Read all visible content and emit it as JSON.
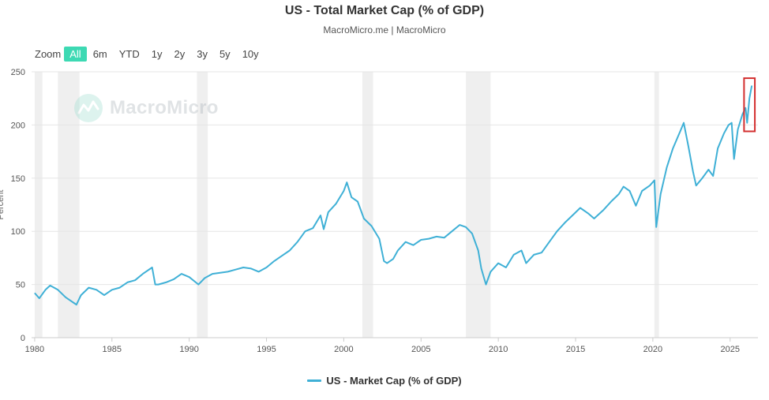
{
  "header": {
    "title": "US - Total Market Cap (% of GDP)",
    "subtitle": "MacroMicro.me | MacroMicro"
  },
  "zoom": {
    "label": "Zoom",
    "buttons": [
      "All",
      "6m",
      "YTD",
      "1y",
      "2y",
      "3y",
      "5y",
      "10y"
    ],
    "active": "All"
  },
  "watermark": {
    "text": "MacroMicro",
    "icon": "macromicro-logo-icon"
  },
  "colors": {
    "line": "#3fb0d6",
    "recession": "#efefef",
    "grid": "#e6e6e6",
    "highlight": "#d32f2f",
    "active_zoom": "#3dd9b3"
  },
  "chart_data": {
    "type": "line",
    "title": "US - Total Market Cap (% of GDP)",
    "subtitle": "MacroMicro.me | MacroMicro",
    "xlabel": "",
    "ylabel": "Percent",
    "xlim": [
      1979.8,
      2026.8
    ],
    "ylim": [
      0,
      250
    ],
    "x_ticks": [
      1980,
      1985,
      1990,
      1995,
      2000,
      2005,
      2010,
      2015,
      2020,
      2025
    ],
    "y_ticks": [
      0,
      50,
      100,
      150,
      200,
      250
    ],
    "grid": true,
    "legend_position": "bottom-center",
    "recession_bands": [
      [
        1980.0,
        1980.5
      ],
      [
        1981.5,
        1982.9
      ],
      [
        1990.5,
        1991.2
      ],
      [
        2001.2,
        2001.9
      ],
      [
        2007.9,
        2009.5
      ],
      [
        2020.1,
        2020.4
      ]
    ],
    "highlight_box": {
      "x": [
        2025.9,
        2026.6
      ],
      "y": [
        194,
        244
      ]
    },
    "series": [
      {
        "name": "US - Market Cap (% of GDP)",
        "points": [
          [
            1980.0,
            42
          ],
          [
            1980.3,
            37
          ],
          [
            1980.7,
            45
          ],
          [
            1981.0,
            49
          ],
          [
            1981.5,
            45
          ],
          [
            1982.0,
            38
          ],
          [
            1982.5,
            33
          ],
          [
            1982.7,
            31
          ],
          [
            1983.0,
            40
          ],
          [
            1983.5,
            47
          ],
          [
            1984.0,
            45
          ],
          [
            1984.5,
            40
          ],
          [
            1985.0,
            45
          ],
          [
            1985.5,
            47
          ],
          [
            1986.0,
            52
          ],
          [
            1986.5,
            54
          ],
          [
            1987.0,
            60
          ],
          [
            1987.6,
            66
          ],
          [
            1987.8,
            50
          ],
          [
            1988.0,
            50
          ],
          [
            1988.5,
            52
          ],
          [
            1989.0,
            55
          ],
          [
            1989.5,
            60
          ],
          [
            1990.0,
            57
          ],
          [
            1990.6,
            50
          ],
          [
            1991.0,
            56
          ],
          [
            1991.5,
            60
          ],
          [
            1992.0,
            61
          ],
          [
            1992.5,
            62
          ],
          [
            1993.0,
            64
          ],
          [
            1993.5,
            66
          ],
          [
            1994.0,
            65
          ],
          [
            1994.5,
            62
          ],
          [
            1995.0,
            66
          ],
          [
            1995.5,
            72
          ],
          [
            1996.0,
            77
          ],
          [
            1996.5,
            82
          ],
          [
            1997.0,
            90
          ],
          [
            1997.5,
            100
          ],
          [
            1998.0,
            103
          ],
          [
            1998.5,
            115
          ],
          [
            1998.7,
            102
          ],
          [
            1999.0,
            118
          ],
          [
            1999.5,
            126
          ],
          [
            2000.0,
            138
          ],
          [
            2000.2,
            146
          ],
          [
            2000.5,
            132
          ],
          [
            2000.9,
            128
          ],
          [
            2001.3,
            112
          ],
          [
            2001.8,
            105
          ],
          [
            2002.3,
            93
          ],
          [
            2002.6,
            72
          ],
          [
            2002.8,
            70
          ],
          [
            2003.2,
            74
          ],
          [
            2003.5,
            82
          ],
          [
            2004.0,
            90
          ],
          [
            2004.5,
            87
          ],
          [
            2005.0,
            92
          ],
          [
            2005.5,
            93
          ],
          [
            2006.0,
            95
          ],
          [
            2006.5,
            94
          ],
          [
            2007.0,
            100
          ],
          [
            2007.5,
            106
          ],
          [
            2007.9,
            104
          ],
          [
            2008.3,
            98
          ],
          [
            2008.7,
            82
          ],
          [
            2008.9,
            65
          ],
          [
            2009.2,
            50
          ],
          [
            2009.5,
            62
          ],
          [
            2010.0,
            70
          ],
          [
            2010.5,
            66
          ],
          [
            2011.0,
            78
          ],
          [
            2011.5,
            82
          ],
          [
            2011.8,
            70
          ],
          [
            2012.3,
            78
          ],
          [
            2012.8,
            80
          ],
          [
            2013.3,
            90
          ],
          [
            2013.8,
            100
          ],
          [
            2014.3,
            108
          ],
          [
            2014.8,
            115
          ],
          [
            2015.3,
            122
          ],
          [
            2015.8,
            117
          ],
          [
            2016.2,
            112
          ],
          [
            2016.8,
            120
          ],
          [
            2017.3,
            128
          ],
          [
            2017.8,
            135
          ],
          [
            2018.1,
            142
          ],
          [
            2018.5,
            138
          ],
          [
            2018.9,
            124
          ],
          [
            2019.3,
            138
          ],
          [
            2019.8,
            143
          ],
          [
            2020.1,
            148
          ],
          [
            2020.22,
            104
          ],
          [
            2020.5,
            135
          ],
          [
            2020.9,
            160
          ],
          [
            2021.3,
            178
          ],
          [
            2021.8,
            195
          ],
          [
            2022.0,
            202
          ],
          [
            2022.3,
            180
          ],
          [
            2022.6,
            156
          ],
          [
            2022.8,
            143
          ],
          [
            2023.2,
            150
          ],
          [
            2023.6,
            158
          ],
          [
            2023.9,
            152
          ],
          [
            2024.2,
            178
          ],
          [
            2024.6,
            192
          ],
          [
            2024.9,
            200
          ],
          [
            2025.1,
            202
          ],
          [
            2025.25,
            168
          ],
          [
            2025.5,
            196
          ],
          [
            2025.8,
            210
          ],
          [
            2026.0,
            216
          ],
          [
            2026.1,
            202
          ],
          [
            2026.25,
            225
          ],
          [
            2026.4,
            237
          ]
        ]
      }
    ]
  }
}
